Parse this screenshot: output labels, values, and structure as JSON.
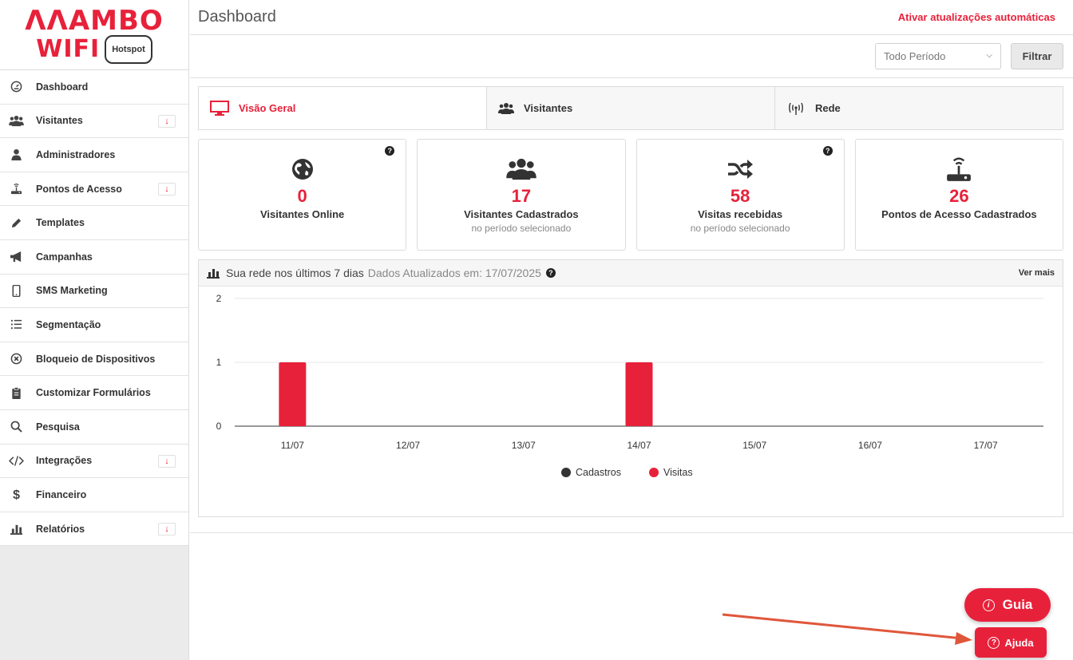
{
  "logo": {
    "top": "ΛΛAMBO",
    "wifi": "WIFI",
    "badge": "Hotspot"
  },
  "sidebar": {
    "items": [
      {
        "label": "Dashboard",
        "icon": "gauge-icon",
        "badge": ""
      },
      {
        "label": "Visitantes",
        "icon": "users-icon",
        "badge": "↓"
      },
      {
        "label": "Administradores",
        "icon": "user-icon",
        "badge": ""
      },
      {
        "label": "Pontos de Acesso",
        "icon": "router-icon",
        "badge": "↓"
      },
      {
        "label": "Templates",
        "icon": "pencil-icon",
        "badge": ""
      },
      {
        "label": "Campanhas",
        "icon": "megaphone-icon",
        "badge": ""
      },
      {
        "label": "SMS Marketing",
        "icon": "mobile-icon",
        "badge": ""
      },
      {
        "label": "Segmentação",
        "icon": "list-icon",
        "badge": ""
      },
      {
        "label": "Bloqueio de Dispositivos",
        "icon": "block-icon",
        "badge": ""
      },
      {
        "label": "Customizar Formulários",
        "icon": "clipboard-icon",
        "badge": ""
      },
      {
        "label": "Pesquisa",
        "icon": "search-icon",
        "badge": ""
      },
      {
        "label": "Integrações",
        "icon": "code-icon",
        "badge": "↓"
      },
      {
        "label": "Financeiro",
        "icon": "dollar-icon",
        "badge": ""
      },
      {
        "label": "Relatórios",
        "icon": "bar-chart-icon",
        "badge": "↓"
      }
    ]
  },
  "header": {
    "title": "Dashboard",
    "auto_update": "Ativar atualizações automáticas"
  },
  "filter": {
    "period_value": "Todo Período",
    "button": "Filtrar"
  },
  "tabs": [
    {
      "label": "Visão Geral",
      "icon": "monitor-icon",
      "active": true
    },
    {
      "label": "Visitantes",
      "icon": "users-icon",
      "active": false
    },
    {
      "label": "Rede",
      "icon": "broadcast-icon",
      "active": false
    }
  ],
  "cards": [
    {
      "value": "0",
      "label": "Visitantes Online",
      "sub": "",
      "icon": "globe-icon",
      "help": true
    },
    {
      "value": "17",
      "label": "Visitantes Cadastrados",
      "sub": "no período selecionado",
      "icon": "users-icon",
      "help": false
    },
    {
      "value": "58",
      "label": "Visitas recebidas",
      "sub": "no período selecionado",
      "icon": "shuffle-icon",
      "help": true
    },
    {
      "value": "26",
      "label": "Pontos de Acesso Cadastrados",
      "sub": "",
      "icon": "router-icon",
      "help": false
    }
  ],
  "chart_panel": {
    "title": "Sua rede nos últimos 7 dias",
    "updated": "Dados Atualizados em: 17/07/2025",
    "see_more": "Ver mais"
  },
  "chart_data": {
    "type": "bar",
    "categories": [
      "11/07",
      "12/07",
      "13/07",
      "14/07",
      "15/07",
      "16/07",
      "17/07"
    ],
    "series": [
      {
        "name": "Cadastros",
        "values": [
          0,
          0,
          0,
          0,
          0,
          0,
          0
        ],
        "color": "#333333"
      },
      {
        "name": "Visitas",
        "values": [
          1,
          0,
          0,
          1,
          0,
          0,
          0
        ],
        "color": "#e8213a"
      }
    ],
    "yticks": [
      "0",
      "1",
      "2"
    ],
    "ylim": [
      0,
      2
    ],
    "grid": true,
    "legend": "bottom"
  },
  "floating": {
    "guide": "Guia",
    "help": "Ajuda"
  },
  "colors": {
    "accent": "#e8213a",
    "annotation_arrow": "#e0563a"
  }
}
